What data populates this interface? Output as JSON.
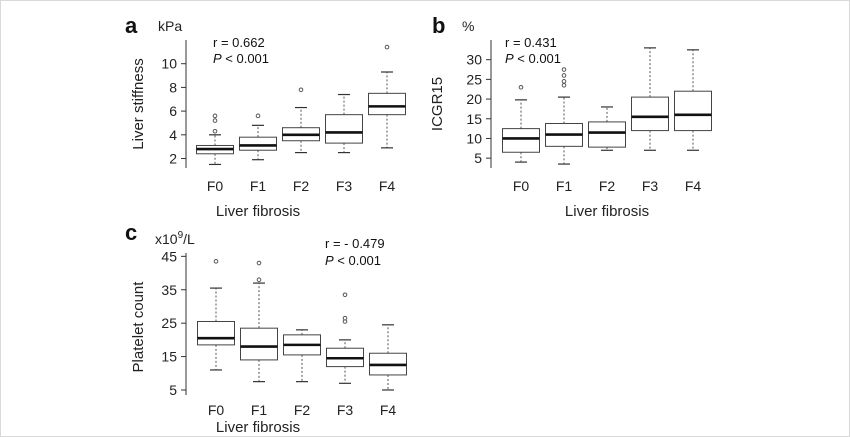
{
  "chart_data": [
    {
      "type": "box",
      "panel": "a",
      "unit": "kPa",
      "ylabel": "Liver stiffness",
      "xlabel": "Liver fibrosis",
      "stat_r": "r = 0.662",
      "stat_p_italic": "P",
      "stat_p_rest": " < 0.001",
      "categories": [
        "F0",
        "F1",
        "F2",
        "F3",
        "F4"
      ],
      "yticks": [
        "2",
        "4",
        "6",
        "8",
        "10"
      ],
      "ylim": [
        1.2,
        12
      ],
      "boxes": [
        {
          "category": "F0",
          "whisker_low": 1.5,
          "q1": 2.4,
          "median": 2.8,
          "q3": 3.1,
          "whisker_high": 4.0,
          "outliers": [
            4.3,
            5.2,
            5.6
          ]
        },
        {
          "category": "F1",
          "whisker_low": 1.9,
          "q1": 2.7,
          "median": 3.1,
          "q3": 3.8,
          "whisker_high": 4.8,
          "outliers": [
            5.6
          ]
        },
        {
          "category": "F2",
          "whisker_low": 2.5,
          "q1": 3.5,
          "median": 4.0,
          "q3": 4.6,
          "whisker_high": 6.3,
          "outliers": [
            7.8
          ]
        },
        {
          "category": "F3",
          "whisker_low": 2.5,
          "q1": 3.3,
          "median": 4.2,
          "q3": 5.7,
          "whisker_high": 7.4,
          "outliers": []
        },
        {
          "category": "F4",
          "whisker_low": 2.9,
          "q1": 5.7,
          "median": 6.4,
          "q3": 7.5,
          "whisker_high": 9.3,
          "outliers": [
            11.4
          ]
        }
      ]
    },
    {
      "type": "box",
      "panel": "b",
      "unit": "%",
      "ylabel": "ICGR15",
      "xlabel": "Liver fibrosis",
      "stat_r": "r = 0.431",
      "stat_p_italic": "P",
      "stat_p_rest": " < 0.001",
      "categories": [
        "F0",
        "F1",
        "F2",
        "F3",
        "F4"
      ],
      "yticks": [
        "5",
        "10",
        "15",
        "20",
        "25",
        "30"
      ],
      "ylim": [
        2.5,
        35
      ],
      "boxes": [
        {
          "category": "F0",
          "whisker_low": 4.0,
          "q1": 6.5,
          "median": 10.0,
          "q3": 12.5,
          "whisker_high": 19.8,
          "outliers": [
            23.0
          ]
        },
        {
          "category": "F1",
          "whisker_low": 3.5,
          "q1": 8.0,
          "median": 11.0,
          "q3": 13.8,
          "whisker_high": 20.5,
          "outliers": [
            23.5,
            24.5,
            26.0,
            27.5
          ]
        },
        {
          "category": "F2",
          "whisker_low": 7.0,
          "q1": 7.8,
          "median": 11.5,
          "q3": 14.2,
          "whisker_high": 18.0,
          "outliers": []
        },
        {
          "category": "F3",
          "whisker_low": 7.0,
          "q1": 12.0,
          "median": 15.5,
          "q3": 20.5,
          "whisker_high": 33.0,
          "outliers": []
        },
        {
          "category": "F4",
          "whisker_low": 7.0,
          "q1": 12.0,
          "median": 16.0,
          "q3": 22.0,
          "whisker_high": 32.5,
          "outliers": []
        }
      ]
    },
    {
      "type": "box",
      "panel": "c",
      "unit_base": "x10",
      "unit_sup": "9",
      "unit_rest": "/L",
      "ylabel": "Platelet count",
      "xlabel": "Liver fibrosis",
      "stat_r": "r = - 0.479",
      "stat_p_italic": "P",
      "stat_p_rest": " < 0.001",
      "categories": [
        "F0",
        "F1",
        "F2",
        "F3",
        "F4"
      ],
      "yticks": [
        "5",
        "15",
        "25",
        "35",
        "45"
      ],
      "ylim": [
        3.5,
        46
      ],
      "boxes": [
        {
          "category": "F0",
          "whisker_low": 11.0,
          "q1": 18.5,
          "median": 20.5,
          "q3": 25.5,
          "whisker_high": 35.5,
          "outliers": [
            43.5
          ]
        },
        {
          "category": "F1",
          "whisker_low": 7.5,
          "q1": 14.0,
          "median": 18.0,
          "q3": 23.5,
          "whisker_high": 37.0,
          "outliers": [
            38.0,
            43.0
          ]
        },
        {
          "category": "F2",
          "whisker_low": 7.5,
          "q1": 15.5,
          "median": 18.5,
          "q3": 21.5,
          "whisker_high": 23.0,
          "outliers": []
        },
        {
          "category": "F3",
          "whisker_low": 7.0,
          "q1": 12.0,
          "median": 14.5,
          "q3": 17.5,
          "whisker_high": 20.0,
          "outliers": [
            25.5,
            26.5,
            33.5
          ]
        },
        {
          "category": "F4",
          "whisker_low": 5.0,
          "q1": 9.5,
          "median": 12.5,
          "q3": 16.0,
          "whisker_high": 24.5,
          "outliers": []
        }
      ]
    }
  ]
}
